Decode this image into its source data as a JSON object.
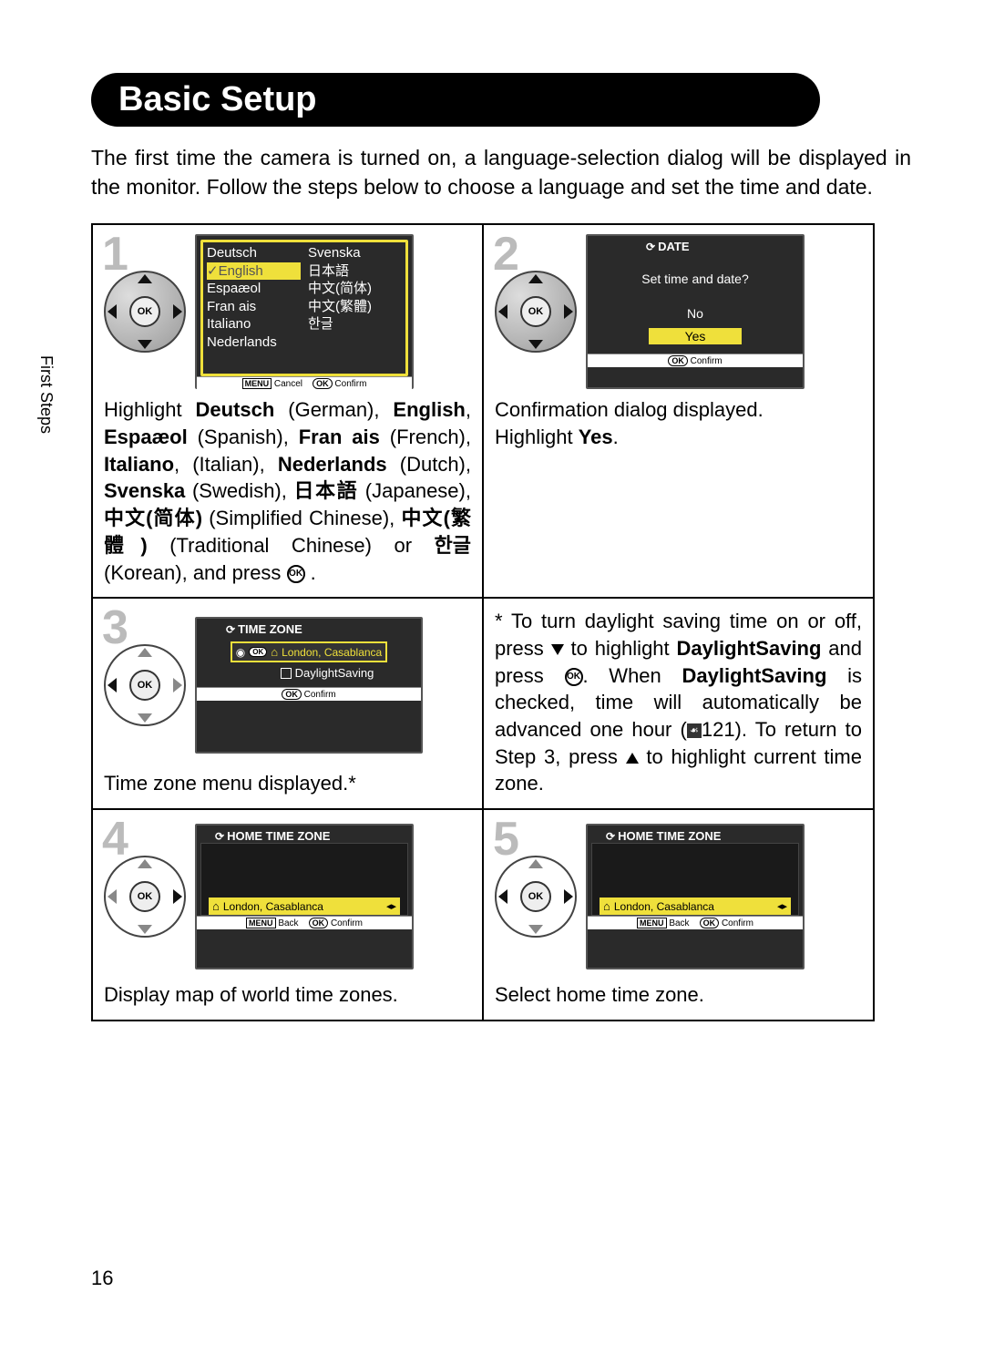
{
  "page": {
    "title": "Basic Setup",
    "intro": "The first time the camera is turned on, a language-selection dialog will be displayed in the monitor. Follow the steps below to choose a language and set the time and date.",
    "side_tab": "First Steps",
    "page_number": "16"
  },
  "steps": {
    "s1": {
      "num": "1",
      "languages_left": [
        "Deutsch",
        "English",
        "Espaæol",
        "Fran ais",
        "Italiano",
        "Nederlands"
      ],
      "languages_right": [
        "Svenska",
        "日本語",
        "中文(简体)",
        "中文(繁體)",
        "한글",
        ""
      ],
      "footer_cancel": "Cancel",
      "footer_confirm": "Confirm",
      "caption_html": "Highlight <b>Deutsch</b> (German), <b>English</b>, <b>Espaæol</b> (Spanish), <b>Fran ais</b> (French), <b>Italiano</b>, (Italian), <b>Nederlands</b> (Dutch), <b>Svenska</b> (Swedish), <b>日本語</b> (Japanese), <b>中文(简体)</b> (Simplified Chinese), <b>中文(繁體)</b> (Traditional Chinese) or <b>한글</b> (Korean), and press "
    },
    "s2": {
      "num": "2",
      "header": "DATE",
      "prompt": "Set time and date?",
      "opt_no": "No",
      "opt_yes": "Yes",
      "footer_confirm": "Confirm",
      "caption_line1": "Confirmation dialog displayed.",
      "caption_line2_pre": "Highlight ",
      "caption_line2_b": "Yes",
      "caption_line2_post": "."
    },
    "s3": {
      "num": "3",
      "header": "TIME ZONE",
      "tz_label": "London, Casablanca",
      "ds_label": "DaylightSaving",
      "footer_confirm": "Confirm",
      "caption": "Time zone menu displayed.*"
    },
    "note": {
      "prefix": "* To turn daylight saving time on or off, press ",
      "mid1": " to highlight ",
      "b1": "DaylightSaving",
      "mid2": " and press ",
      "mid3": ". When ",
      "b2": "DaylightSaving",
      "mid4": " is checked, time will automatically be advanced one hour (",
      "pageref": "121",
      "mid5": "). To return to Step 3, press ",
      "mid6": " to highlight current time zone."
    },
    "s4": {
      "num": "4",
      "header": "HOME TIME ZONE",
      "tz_label": "London, Casablanca",
      "footer_back": "Back",
      "footer_confirm": "Confirm",
      "caption": "Display map of world time zones."
    },
    "s5": {
      "num": "5",
      "header": "HOME TIME ZONE",
      "tz_label": "London, Casablanca",
      "footer_back": "Back",
      "footer_confirm": "Confirm",
      "caption": "Select home time zone."
    }
  },
  "colors": {
    "highlight": "#efe03b",
    "lcd_bg": "#2a2a2a",
    "stepnum": "#bbbbbb"
  }
}
